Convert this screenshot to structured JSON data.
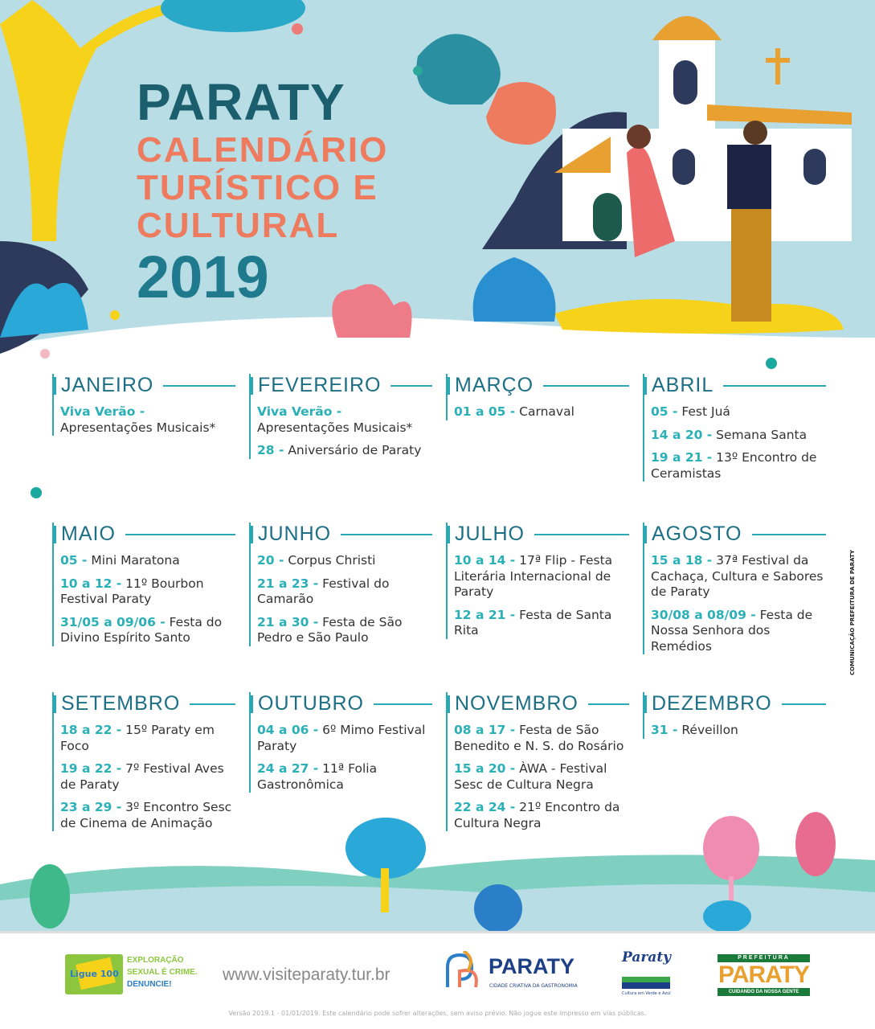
{
  "header": {
    "line1": "PARATY",
    "line2": "CALENDÁRIO",
    "line3": "TURÍSTICO E",
    "line4": "CULTURAL",
    "year": "2019"
  },
  "colors": {
    "sky": "#b8dde5",
    "title_dark": "#1b5f6e",
    "title_orange": "#ee7b5e",
    "accent": "#2aa8b3",
    "date": "#2ab0b7"
  },
  "months": [
    {
      "name": "JANEIRO",
      "events": [
        {
          "date": "Viva Verão -",
          "text": " Apresentações Musicais*"
        }
      ]
    },
    {
      "name": "FEVEREIRO",
      "events": [
        {
          "date": "Viva Verão -",
          "text": " Apresentações Musicais*"
        },
        {
          "date": "28 -",
          "text": " Aniversário de Paraty"
        }
      ]
    },
    {
      "name": "MARÇO",
      "events": [
        {
          "date": "01 a 05 -",
          "text": " Carnaval"
        }
      ]
    },
    {
      "name": "ABRIL",
      "events": [
        {
          "date": "05 -",
          "text": " Fest Juá"
        },
        {
          "date": "14 a 20 -",
          "text": " Semana Santa"
        },
        {
          "date": "19 a 21 -",
          "text": " 13º Encontro de Ceramistas"
        }
      ]
    },
    {
      "name": "MAIO",
      "events": [
        {
          "date": "05 -",
          "text": " Mini Maratona"
        },
        {
          "date": "10 a 12 -",
          "text": " 11º Bourbon Festival Paraty"
        },
        {
          "date": "31/05 a 09/06 -",
          "text": " Festa do Divino Espírito Santo"
        }
      ]
    },
    {
      "name": "JUNHO",
      "events": [
        {
          "date": "20 -",
          "text": " Corpus Christi"
        },
        {
          "date": "21 a 23 -",
          "text": " Festival do Camarão"
        },
        {
          "date": "21 a 30 -",
          "text": " Festa de São Pedro e São Paulo"
        }
      ]
    },
    {
      "name": "JULHO",
      "events": [
        {
          "date": "10 a 14 -",
          "text": " 17ª Flip - Festa Literária Internacional de Paraty"
        },
        {
          "date": "12 a 21 -",
          "text": " Festa de Santa Rita"
        }
      ]
    },
    {
      "name": "AGOSTO",
      "events": [
        {
          "date": "15 a 18 -",
          "text": " 37ª Festival da Cachaça, Cultura e Sabores de Paraty"
        },
        {
          "date": "30/08 a 08/09 -",
          "text": " Festa de Nossa Senhora dos Remédios"
        }
      ]
    },
    {
      "name": "SETEMBRO",
      "events": [
        {
          "date": "18 a 22 -",
          "text": " 15º Paraty em Foco"
        },
        {
          "date": "19 a 22 -",
          "text": " 7º Festival Aves de Paraty"
        },
        {
          "date": "23 a 29 -",
          "text": " 3º Encontro Sesc de Cinema de Animação"
        }
      ]
    },
    {
      "name": "OUTUBRO",
      "events": [
        {
          "date": "04 a 06 -",
          "text": " 6º Mimo Festival Paraty"
        },
        {
          "date": "24 a 27 -",
          "text": " 11ª Folia Gastronômica"
        }
      ]
    },
    {
      "name": "NOVEMBRO",
      "events": [
        {
          "date": "08 a 17 -",
          "text": " Festa de São Benedito e N. S. do Rosário"
        },
        {
          "date": "15 a 20 -",
          "text": " ÀWA - Festival Sesc de Cultura Negra"
        },
        {
          "date": "22 a 24 -",
          "text": " 21º Encontro da Cultura Negra"
        }
      ]
    },
    {
      "name": "DEZEMBRO",
      "events": [
        {
          "date": "31 -",
          "text": " Réveillon"
        }
      ]
    }
  ],
  "side_credit": "COMUNICAÇÃO PREFEITURA DE PARATY",
  "footer": {
    "ligue": {
      "brand": "Ligue 100",
      "l1": "EXPLORAÇÃO",
      "l2": "SEXUAL É CRIME.",
      "l3": "DENUNCIE!"
    },
    "url": "www.visiteparaty.tur.br",
    "gastro": {
      "name": "PARATY",
      "sub": "CIDADE CRIATIVA DA GASTRONOMIA"
    },
    "verde": {
      "name": "Paraty",
      "sub": "Cultura em Verde e Azul"
    },
    "prefeitura": {
      "top": "PREFEITURA",
      "name": "PARATY",
      "sub": "CUIDANDO DA NOSSA GENTE"
    },
    "note": "Versão 2019.1 - 01/01/2019. Este calendário pode sofrer alterações, sem aviso prévio. Não jogue este impresso em vias públicas."
  }
}
